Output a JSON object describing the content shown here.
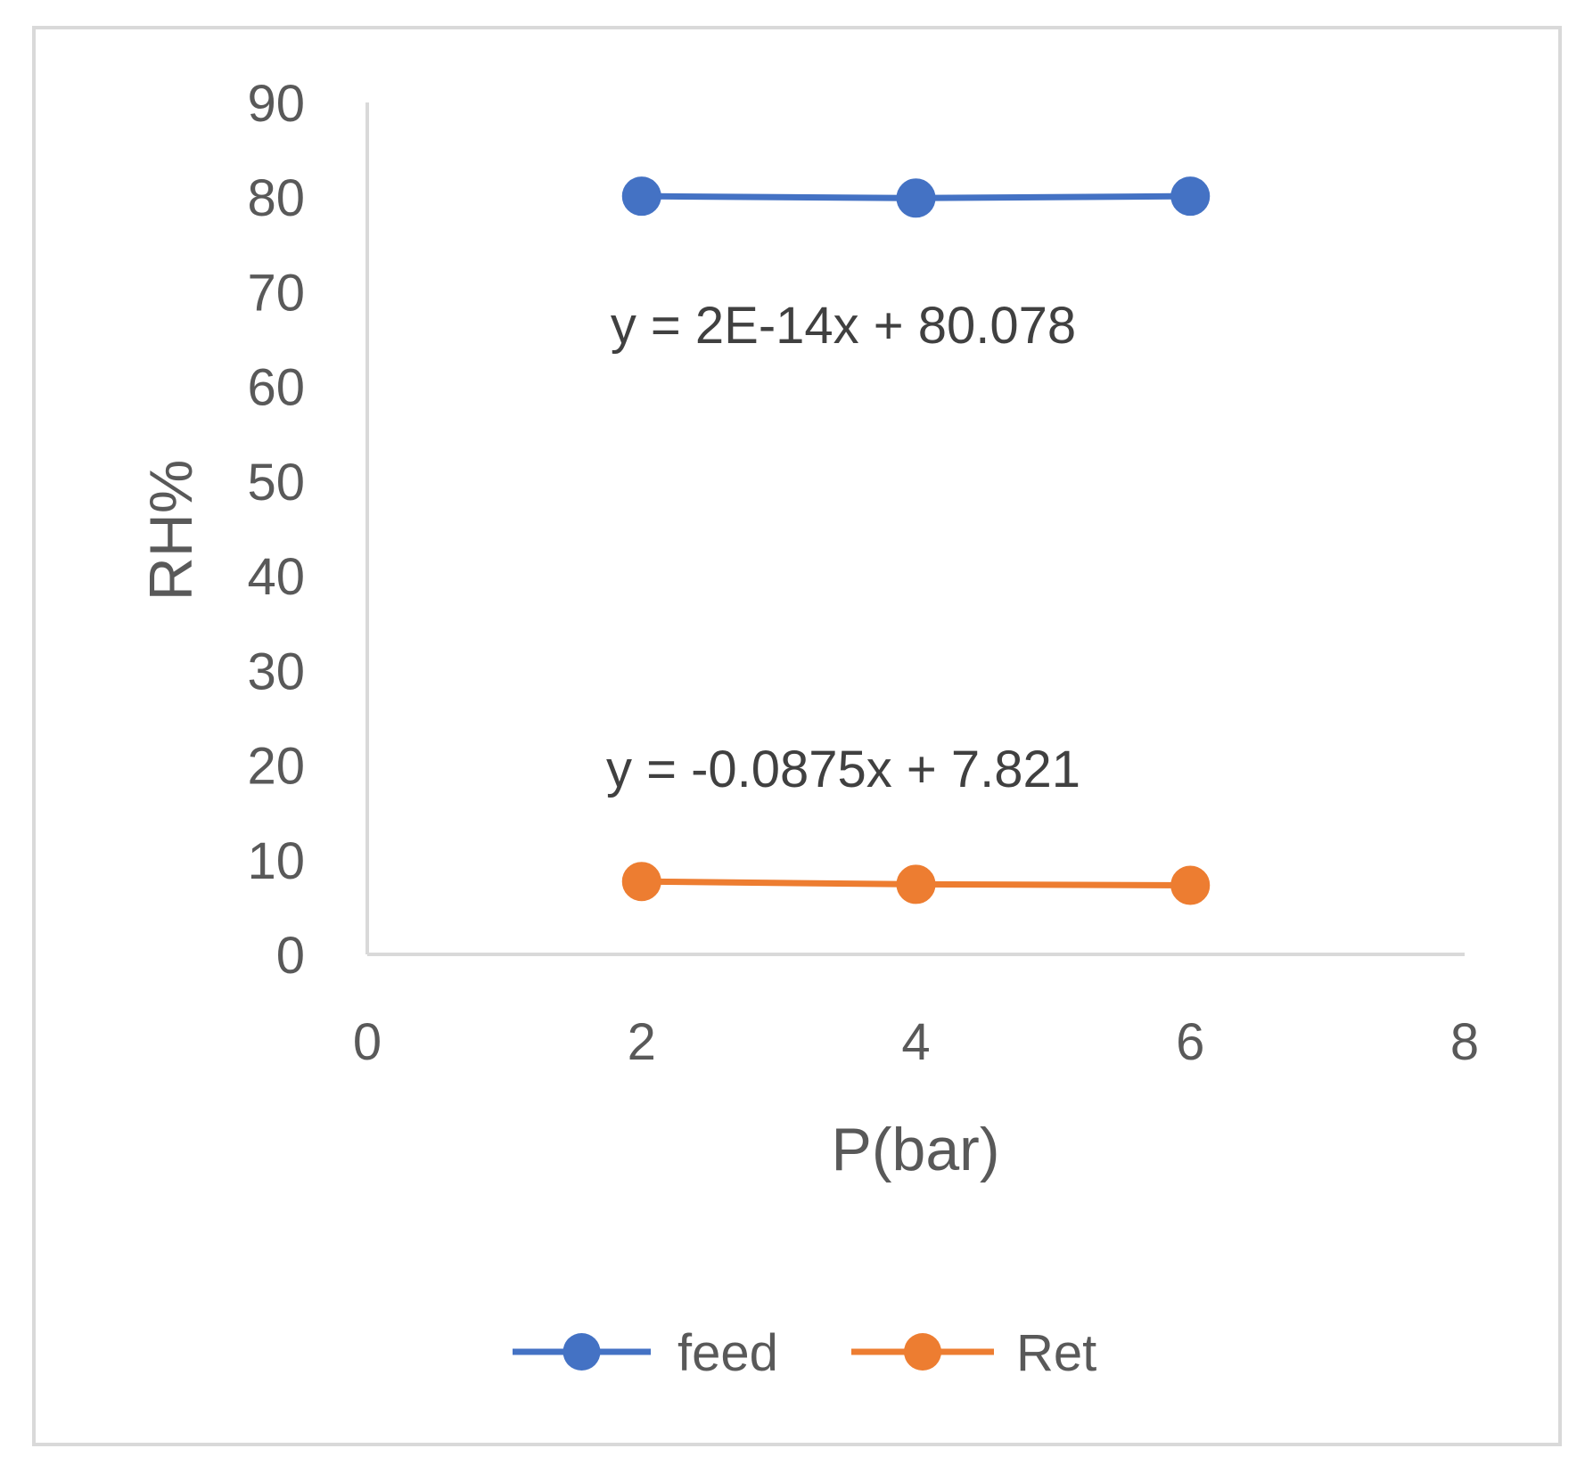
{
  "chart_data": {
    "type": "line",
    "title": "",
    "xlabel": "P(bar)",
    "ylabel": "RH%",
    "xlim": [
      0,
      8
    ],
    "ylim": [
      0,
      90
    ],
    "x_ticks": [
      0,
      2,
      4,
      6,
      8
    ],
    "y_ticks": [
      0,
      10,
      20,
      30,
      40,
      50,
      60,
      70,
      80,
      90
    ],
    "grid": false,
    "legend_position": "bottom",
    "series": [
      {
        "name": "feed",
        "color": "#4472C4",
        "marker": "circle",
        "x": [
          2,
          4,
          6
        ],
        "y": [
          80.1,
          79.9,
          80.1
        ],
        "trendline_equation": "y = 2E-14x + 80.078"
      },
      {
        "name": "Ret",
        "color": "#ED7D31",
        "marker": "circle",
        "x": [
          2,
          4,
          6
        ],
        "y": [
          7.7,
          7.4,
          7.3
        ],
        "trendline_equation": "y = -0.0875x + 7.821"
      }
    ]
  }
}
